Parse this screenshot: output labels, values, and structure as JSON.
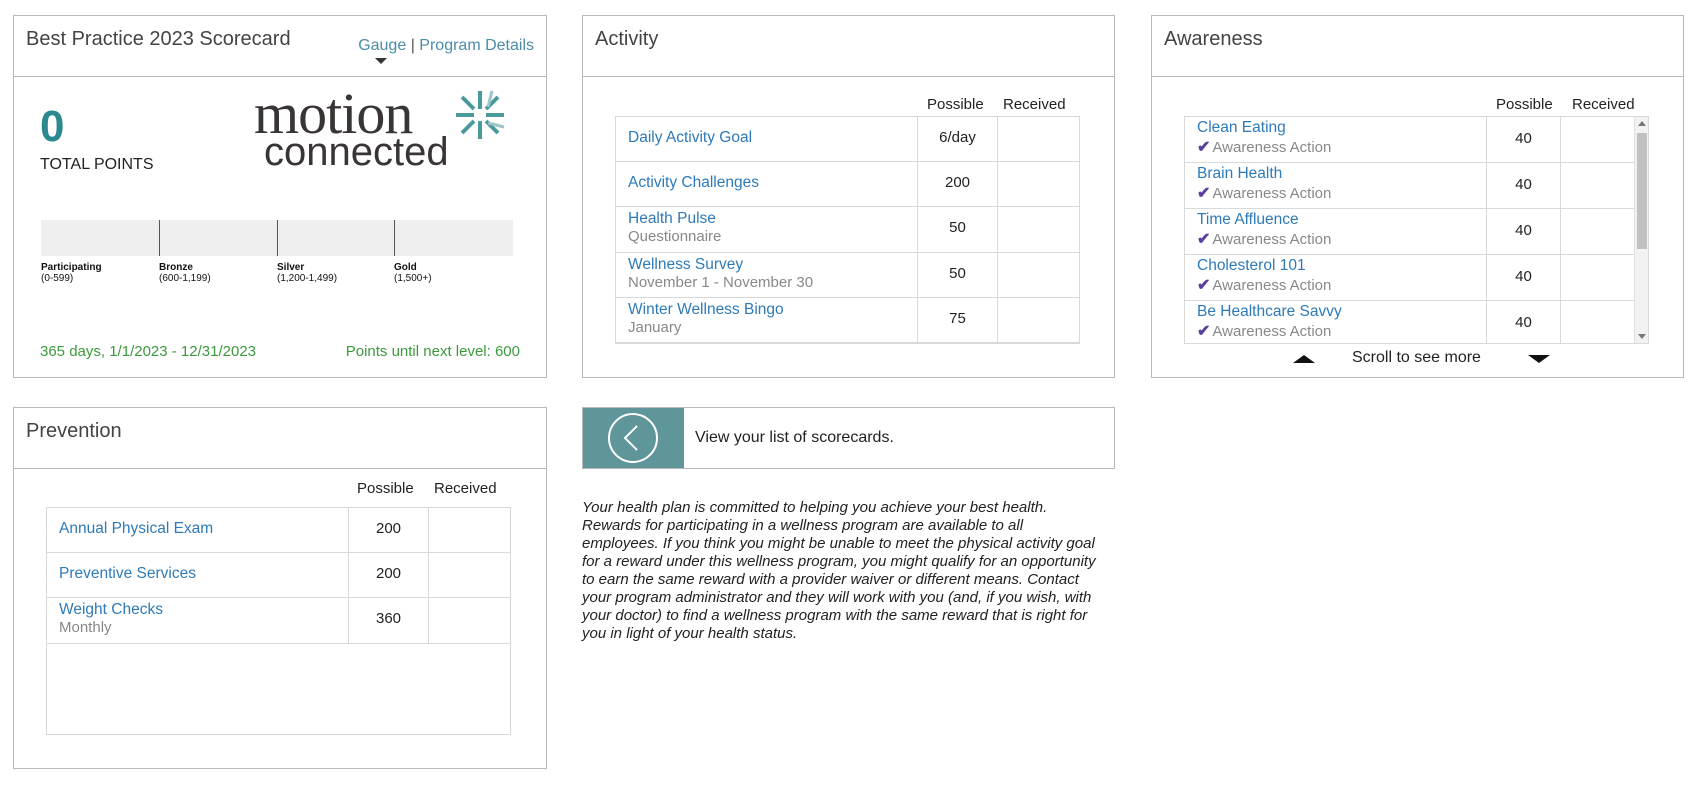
{
  "scorecard": {
    "title": "Best Practice 2023 Scorecard",
    "links": {
      "gauge": "Gauge",
      "separator": "|",
      "program_details": "Program Details"
    },
    "total_points": "0",
    "total_points_label": "TOTAL POINTS",
    "logo": {
      "line1": "motion",
      "line2": "connected",
      "brand_color": "#4a9a9c"
    },
    "levels": [
      {
        "name": "Participating",
        "range": "(0-599)"
      },
      {
        "name": "Bronze",
        "range": "(600-1,199)"
      },
      {
        "name": "Silver",
        "range": "(1,200-1,499)"
      },
      {
        "name": "Gold",
        "range": "(1,500+)"
      }
    ],
    "progress_fraction": 0,
    "period": "365 days, 1/1/2023 - 12/31/2023",
    "next_level": "Points until next level: 600"
  },
  "activity": {
    "title": "Activity",
    "col_possible": "Possible",
    "col_received": "Received",
    "rows": [
      {
        "title": "Daily Activity Goal",
        "sub": "",
        "possible": "6/day",
        "received": ""
      },
      {
        "title": "Activity Challenges",
        "sub": "",
        "possible": "200",
        "received": ""
      },
      {
        "title": "Health Pulse",
        "sub": "Questionnaire",
        "possible": "50",
        "received": ""
      },
      {
        "title": "Wellness Survey",
        "sub": "November 1 - November 30",
        "possible": "50",
        "received": ""
      },
      {
        "title": "Winter Wellness Bingo",
        "sub": "January",
        "possible": "75",
        "received": ""
      }
    ]
  },
  "awareness": {
    "title": "Awareness",
    "col_possible": "Possible",
    "col_received": "Received",
    "rows": [
      {
        "title": "Clean Eating",
        "sub": "Awareness Action",
        "possible": "40",
        "received": ""
      },
      {
        "title": "Brain Health",
        "sub": "Awareness Action",
        "possible": "40",
        "received": ""
      },
      {
        "title": "Time Affluence",
        "sub": "Awareness Action",
        "possible": "40",
        "received": ""
      },
      {
        "title": "Cholesterol 101",
        "sub": "Awareness Action",
        "possible": "40",
        "received": ""
      },
      {
        "title": "Be Healthcare Savvy",
        "sub": "Awareness Action",
        "possible": "40",
        "received": ""
      }
    ],
    "scroll_text": "Scroll to see more"
  },
  "prevention": {
    "title": "Prevention",
    "col_possible": "Possible",
    "col_received": "Received",
    "rows": [
      {
        "title": "Annual Physical Exam",
        "sub": "",
        "possible": "200",
        "received": ""
      },
      {
        "title": "Preventive Services",
        "sub": "",
        "possible": "200",
        "received": ""
      },
      {
        "title": "Weight Checks",
        "sub": "Monthly",
        "possible": "360",
        "received": ""
      }
    ]
  },
  "back_link": {
    "text": "View your list of scorecards."
  },
  "disclaimer": "Your health plan is committed to helping you achieve your best health. Rewards for participating in a wellness program are available to all employees. If you think you might be unable to meet the physical activity goal for a reward under this wellness program, you might qualify for an opportunity to earn the same reward with a provider waiver or different means. Contact your program administrator and they will work with you (and, if you wish, with your doctor) to find a wellness program with the same reward that is right for you in light of your health status."
}
